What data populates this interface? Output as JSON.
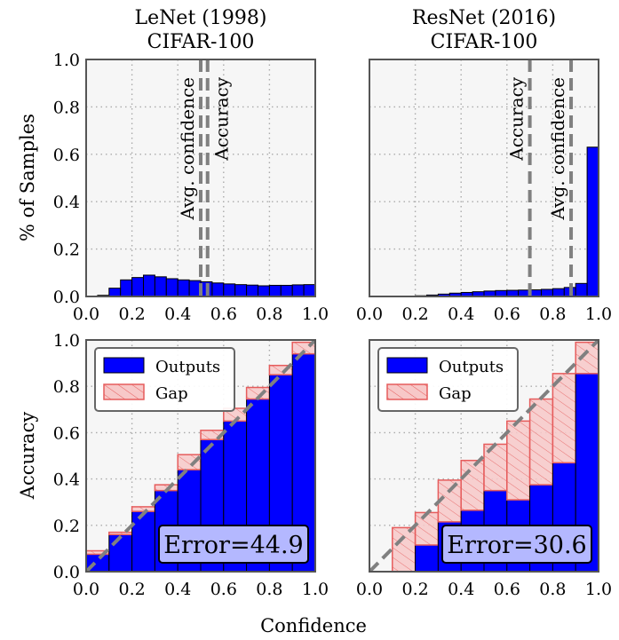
{
  "figure": {
    "xlabel": "Confidence",
    "colors": {
      "bar": "#0000ff",
      "gap_fill": "#f7c8c8",
      "gap_edge": "#e65c5c",
      "dash": "#808080",
      "panel_bg": "#f6f6f6",
      "grid": "#aaaaaa",
      "err_box": "#b4b8ff"
    }
  },
  "chart_data": [
    {
      "type": "bar",
      "panel": "lenet-hist",
      "title_line1": "LeNet (1998)",
      "title_line2": "CIFAR-100",
      "ylabel": "% of Samples",
      "xlim": [
        0.0,
        1.0
      ],
      "ylim": [
        0.0,
        1.0
      ],
      "x_ticks": [
        "0.0",
        "0.2",
        "0.4",
        "0.6",
        "0.8",
        "1.0"
      ],
      "y_ticks": [
        "0.0",
        "0.2",
        "0.4",
        "0.6",
        "0.8",
        "1.0"
      ],
      "grid": true,
      "bin_width": 0.05,
      "bin_starts": [
        0.05,
        0.1,
        0.15,
        0.2,
        0.25,
        0.3,
        0.35,
        0.4,
        0.45,
        0.5,
        0.55,
        0.6,
        0.65,
        0.7,
        0.75,
        0.8,
        0.85,
        0.9,
        0.95
      ],
      "values": [
        0.005,
        0.035,
        0.07,
        0.08,
        0.09,
        0.083,
        0.075,
        0.07,
        0.067,
        0.062,
        0.057,
        0.053,
        0.05,
        0.048,
        0.045,
        0.047,
        0.047,
        0.049,
        0.05
      ],
      "markers": [
        {
          "label": "Avg. confidence",
          "x": 0.5,
          "label_side": "left"
        },
        {
          "label": "Accuracy",
          "x": 0.53,
          "label_side": "right"
        }
      ]
    },
    {
      "type": "bar",
      "panel": "resnet-hist",
      "title_line1": "ResNet (2016)",
      "title_line2": "CIFAR-100",
      "xlim": [
        0.0,
        1.0
      ],
      "ylim": [
        0.0,
        1.0
      ],
      "x_ticks": [
        "0.0",
        "0.2",
        "0.4",
        "0.6",
        "0.8",
        "1.0"
      ],
      "grid": true,
      "bin_width": 0.05,
      "bin_starts": [
        0.2,
        0.25,
        0.3,
        0.35,
        0.4,
        0.45,
        0.5,
        0.55,
        0.6,
        0.65,
        0.7,
        0.75,
        0.8,
        0.85,
        0.9,
        0.95
      ],
      "values": [
        0.003,
        0.006,
        0.01,
        0.014,
        0.017,
        0.02,
        0.023,
        0.025,
        0.026,
        0.027,
        0.028,
        0.03,
        0.033,
        0.038,
        0.055,
        0.63
      ],
      "markers": [
        {
          "label": "Accuracy",
          "x": 0.7,
          "label_side": "left"
        },
        {
          "label": "Avg. confidence",
          "x": 0.88,
          "label_side": "left"
        }
      ]
    },
    {
      "type": "bar",
      "panel": "lenet-reliability",
      "ylabel": "Accuracy",
      "xlim": [
        0.0,
        1.0
      ],
      "ylim": [
        0.0,
        1.0
      ],
      "x_ticks": [
        "0.0",
        "0.2",
        "0.4",
        "0.6",
        "0.8",
        "1.0"
      ],
      "y_ticks": [
        "0.0",
        "0.2",
        "0.4",
        "0.6",
        "0.8",
        "1.0"
      ],
      "grid": true,
      "bin_width": 0.1,
      "bin_starts": [
        0.0,
        0.1,
        0.2,
        0.3,
        0.4,
        0.5,
        0.6,
        0.7,
        0.8,
        0.9
      ],
      "outputs": [
        0.075,
        0.16,
        0.26,
        0.35,
        0.44,
        0.57,
        0.65,
        0.745,
        0.85,
        0.94
      ],
      "gap_targets": [
        0.09,
        0.17,
        0.28,
        0.375,
        0.505,
        0.61,
        0.705,
        0.795,
        0.89,
        0.99
      ],
      "legend": {
        "outputs": "Outputs",
        "gap": "Gap",
        "position": "upper-left"
      },
      "error_label": "Error=44.9"
    },
    {
      "type": "bar",
      "panel": "resnet-reliability",
      "xlim": [
        0.0,
        1.0
      ],
      "ylim": [
        0.0,
        1.0
      ],
      "x_ticks": [
        "0.0",
        "0.2",
        "0.4",
        "0.6",
        "0.8",
        "1.0"
      ],
      "grid": true,
      "bin_width": 0.1,
      "bin_starts": [
        0.0,
        0.1,
        0.2,
        0.3,
        0.4,
        0.5,
        0.6,
        0.7,
        0.8,
        0.9
      ],
      "outputs": [
        0.0,
        0.0,
        0.115,
        0.215,
        0.265,
        0.35,
        0.31,
        0.375,
        0.47,
        0.855
      ],
      "gap_targets": [
        0.0,
        0.19,
        0.255,
        0.395,
        0.48,
        0.55,
        0.65,
        0.745,
        0.855,
        0.99
      ],
      "legend": {
        "outputs": "Outputs",
        "gap": "Gap",
        "position": "upper-left"
      },
      "error_label": "Error=30.6"
    }
  ]
}
